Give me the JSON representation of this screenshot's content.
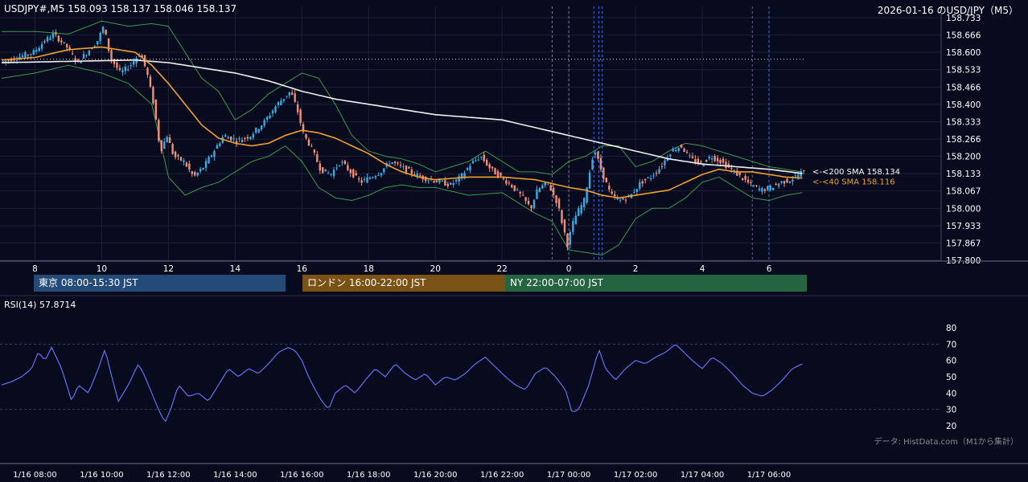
{
  "header": {
    "symbol_ohlc": "USDJPY#,M5 158.093 158.137 158.046 158.137",
    "right_title": "2026-01-16 のUSD/JPY（M5）"
  },
  "sessions": [
    {
      "label": "東京 08:00-15:30 JST",
      "color": "#244a78"
    },
    {
      "label": "ロンドン 16:00-22:00 JST",
      "color": "#7a5214"
    },
    {
      "label": "NY 22:00-07:00 JST",
      "color": "#256440"
    }
  ],
  "rsi_label": "RSI(14) 57.8714",
  "attribution": "データ: HistData.com（M1から集計）",
  "colors": {
    "background": "#080a1e",
    "bull": "#3fa9e0",
    "bear": "#f0907a",
    "sma40": "#f0a030",
    "sma200": "#f0f0f0",
    "bollinger": "#3c9a4a",
    "rsi": "#6670f0",
    "grid": "#1c2036"
  },
  "chart_data": [
    {
      "type": "candlestick",
      "timeframe": "M5",
      "ylim": [
        157.8,
        158.733
      ],
      "y_ticks": [
        "158.733",
        "158.666",
        "158.600",
        "158.533",
        "158.466",
        "158.400",
        "158.333",
        "158.266",
        "158.200",
        "158.133",
        "158.067",
        "158.000",
        "157.933",
        "157.867",
        "157.800"
      ],
      "x_ticks": [
        "8",
        "10",
        "12",
        "14",
        "16",
        "18",
        "20",
        "22",
        "0",
        "2",
        "4",
        "6"
      ],
      "x_tick_hours": [
        8,
        10,
        12,
        14,
        16,
        18,
        20,
        22,
        24,
        26,
        28,
        30
      ],
      "x_range_hours": [
        7.0,
        31.06
      ],
      "bottom_tick_labels": [
        "1/16 08:00",
        "1/16 10:00",
        "1/16 12:00",
        "1/16 14:00",
        "1/16 16:00",
        "1/16 18:00",
        "1/16 20:00",
        "1/16 22:00",
        "1/17 00:00",
        "1/17 02:00",
        "1/17 04:00",
        "1/17 06:00"
      ],
      "indicator_labels": {
        "sma200": "<-<200 SMA 158.134",
        "sma40": "<-<40 SMA 158.116"
      },
      "reference_line": 158.573,
      "event_lines_hours": [
        23.5,
        24.0,
        24.75,
        24.9,
        25.0,
        29.5,
        30.0
      ],
      "price_path": [
        [
          7.0,
          158.56
        ],
        [
          7.5,
          158.58
        ],
        [
          8.0,
          158.6
        ],
        [
          8.3,
          158.64
        ],
        [
          8.6,
          158.67
        ],
        [
          9.0,
          158.62
        ],
        [
          9.3,
          158.56
        ],
        [
          9.6,
          158.6
        ],
        [
          9.9,
          158.64
        ],
        [
          10.1,
          158.7
        ],
        [
          10.3,
          158.58
        ],
        [
          10.6,
          158.52
        ],
        [
          10.9,
          158.55
        ],
        [
          11.2,
          158.6
        ],
        [
          11.4,
          158.52
        ],
        [
          11.6,
          158.4
        ],
        [
          11.8,
          158.22
        ],
        [
          12.0,
          158.28
        ],
        [
          12.2,
          158.2
        ],
        [
          12.5,
          158.18
        ],
        [
          12.8,
          158.12
        ],
        [
          13.1,
          158.16
        ],
        [
          13.4,
          158.22
        ],
        [
          13.7,
          158.28
        ],
        [
          14.1,
          158.26
        ],
        [
          14.5,
          158.28
        ],
        [
          14.9,
          158.33
        ],
        [
          15.3,
          158.4
        ],
        [
          15.7,
          158.45
        ],
        [
          15.9,
          158.38
        ],
        [
          16.1,
          158.28
        ],
        [
          16.3,
          158.24
        ],
        [
          16.6,
          158.15
        ],
        [
          16.9,
          158.13
        ],
        [
          17.2,
          158.18
        ],
        [
          17.5,
          158.14
        ],
        [
          17.8,
          158.1
        ],
        [
          18.1,
          158.12
        ],
        [
          18.4,
          158.14
        ],
        [
          18.7,
          158.18
        ],
        [
          19.0,
          158.16
        ],
        [
          19.3,
          158.14
        ],
        [
          19.6,
          158.12
        ],
        [
          19.9,
          158.11
        ],
        [
          20.2,
          158.1
        ],
        [
          20.5,
          158.09
        ],
        [
          20.8,
          158.12
        ],
        [
          21.1,
          158.17
        ],
        [
          21.4,
          158.2
        ],
        [
          21.7,
          158.15
        ],
        [
          22.0,
          158.12
        ],
        [
          22.3,
          158.09
        ],
        [
          22.6,
          158.05
        ],
        [
          22.9,
          158.0
        ],
        [
          23.1,
          158.07
        ],
        [
          23.4,
          158.1
        ],
        [
          23.7,
          158.02
        ],
        [
          24.0,
          157.86
        ],
        [
          24.2,
          157.96
        ],
        [
          24.5,
          158.03
        ],
        [
          24.8,
          158.23
        ],
        [
          25.0,
          158.15
        ],
        [
          25.3,
          158.05
        ],
        [
          25.6,
          158.03
        ],
        [
          25.9,
          158.05
        ],
        [
          26.2,
          158.1
        ],
        [
          26.5,
          158.12
        ],
        [
          26.8,
          158.16
        ],
        [
          27.1,
          158.22
        ],
        [
          27.4,
          158.24
        ],
        [
          27.7,
          158.19
        ],
        [
          28.0,
          158.17
        ],
        [
          28.3,
          158.2
        ],
        [
          28.6,
          158.18
        ],
        [
          28.9,
          158.15
        ],
        [
          29.2,
          158.12
        ],
        [
          29.5,
          158.09
        ],
        [
          29.8,
          158.07
        ],
        [
          30.1,
          158.08
        ],
        [
          30.4,
          158.1
        ],
        [
          30.7,
          158.11
        ],
        [
          31.0,
          158.137
        ]
      ],
      "sma40_path": [
        [
          7.0,
          158.57
        ],
        [
          8.0,
          158.58
        ],
        [
          9.0,
          158.61
        ],
        [
          10.0,
          158.62
        ],
        [
          11.0,
          158.6
        ],
        [
          11.5,
          158.55
        ],
        [
          12.0,
          158.48
        ],
        [
          12.5,
          158.4
        ],
        [
          13.0,
          158.32
        ],
        [
          13.5,
          158.27
        ],
        [
          14.0,
          158.25
        ],
        [
          14.5,
          158.24
        ],
        [
          15.0,
          158.25
        ],
        [
          15.5,
          158.28
        ],
        [
          16.0,
          158.3
        ],
        [
          16.5,
          158.29
        ],
        [
          17.0,
          158.27
        ],
        [
          17.5,
          158.24
        ],
        [
          18.0,
          158.21
        ],
        [
          18.5,
          158.17
        ],
        [
          19.0,
          158.14
        ],
        [
          19.5,
          158.12
        ],
        [
          20.0,
          158.11
        ],
        [
          21.0,
          158.12
        ],
        [
          22.0,
          158.12
        ],
        [
          23.0,
          158.11
        ],
        [
          24.0,
          158.08
        ],
        [
          24.5,
          158.07
        ],
        [
          25.0,
          158.05
        ],
        [
          25.5,
          158.04
        ],
        [
          26.0,
          158.05
        ],
        [
          26.5,
          158.06
        ],
        [
          27.0,
          158.07
        ],
        [
          27.5,
          158.1
        ],
        [
          28.0,
          158.13
        ],
        [
          28.5,
          158.15
        ],
        [
          29.0,
          158.14
        ],
        [
          29.5,
          158.14
        ],
        [
          30.0,
          158.13
        ],
        [
          30.5,
          158.12
        ],
        [
          31.0,
          158.116
        ]
      ],
      "sma200_path": [
        [
          7.0,
          158.56
        ],
        [
          9.0,
          158.565
        ],
        [
          11.0,
          158.57
        ],
        [
          12.0,
          158.56
        ],
        [
          13.0,
          158.54
        ],
        [
          14.0,
          158.52
        ],
        [
          15.0,
          158.49
        ],
        [
          16.0,
          158.45
        ],
        [
          17.0,
          158.42
        ],
        [
          18.0,
          158.4
        ],
        [
          19.0,
          158.38
        ],
        [
          20.0,
          158.36
        ],
        [
          21.0,
          158.35
        ],
        [
          22.0,
          158.34
        ],
        [
          23.0,
          158.31
        ],
        [
          24.0,
          158.28
        ],
        [
          25.0,
          158.25
        ],
        [
          26.0,
          158.22
        ],
        [
          27.0,
          158.19
        ],
        [
          28.0,
          158.17
        ],
        [
          29.0,
          158.16
        ],
        [
          30.0,
          158.15
        ],
        [
          31.0,
          158.134
        ]
      ],
      "band_upper": [
        [
          7.0,
          158.68
        ],
        [
          8.0,
          158.68
        ],
        [
          9.0,
          158.67
        ],
        [
          10.0,
          158.72
        ],
        [
          10.8,
          158.7
        ],
        [
          11.5,
          158.71
        ],
        [
          12.0,
          158.7
        ],
        [
          12.5,
          158.6
        ],
        [
          13.0,
          158.5
        ],
        [
          13.5,
          158.45
        ],
        [
          14.0,
          158.34
        ],
        [
          14.5,
          158.38
        ],
        [
          15.0,
          158.44
        ],
        [
          15.5,
          158.48
        ],
        [
          16.0,
          158.52
        ],
        [
          16.5,
          158.5
        ],
        [
          17.0,
          158.4
        ],
        [
          17.5,
          158.28
        ],
        [
          18.0,
          158.22
        ],
        [
          18.5,
          158.2
        ],
        [
          19.0,
          158.19
        ],
        [
          19.5,
          158.17
        ],
        [
          20.0,
          158.14
        ],
        [
          21.0,
          158.18
        ],
        [
          21.5,
          158.22
        ],
        [
          22.0,
          158.18
        ],
        [
          22.5,
          158.14
        ],
        [
          23.0,
          158.14
        ],
        [
          23.5,
          158.13
        ],
        [
          24.0,
          158.18
        ],
        [
          24.5,
          158.2
        ],
        [
          25.0,
          158.24
        ],
        [
          25.5,
          158.24
        ],
        [
          26.0,
          158.16
        ],
        [
          26.5,
          158.18
        ],
        [
          27.0,
          158.22
        ],
        [
          27.5,
          158.25
        ],
        [
          28.0,
          158.24
        ],
        [
          28.5,
          158.22
        ],
        [
          29.0,
          158.2
        ],
        [
          29.5,
          158.18
        ],
        [
          30.0,
          158.16
        ],
        [
          30.5,
          158.15
        ],
        [
          31.0,
          158.14
        ]
      ],
      "band_lower": [
        [
          7.0,
          158.5
        ],
        [
          8.0,
          158.52
        ],
        [
          9.0,
          158.55
        ],
        [
          10.0,
          158.52
        ],
        [
          10.8,
          158.48
        ],
        [
          11.5,
          158.4
        ],
        [
          12.0,
          158.12
        ],
        [
          12.5,
          158.05
        ],
        [
          13.0,
          158.08
        ],
        [
          13.5,
          158.1
        ],
        [
          14.0,
          158.14
        ],
        [
          14.5,
          158.18
        ],
        [
          15.0,
          158.2
        ],
        [
          15.5,
          158.24
        ],
        [
          16.0,
          158.18
        ],
        [
          16.5,
          158.08
        ],
        [
          17.0,
          158.04
        ],
        [
          17.5,
          158.03
        ],
        [
          18.0,
          158.05
        ],
        [
          18.5,
          158.08
        ],
        [
          19.0,
          158.09
        ],
        [
          19.5,
          158.08
        ],
        [
          20.0,
          158.08
        ],
        [
          21.0,
          158.05
        ],
        [
          22.0,
          158.06
        ],
        [
          22.5,
          158.02
        ],
        [
          23.0,
          157.98
        ],
        [
          23.5,
          157.95
        ],
        [
          24.0,
          157.84
        ],
        [
          24.5,
          157.83
        ],
        [
          25.0,
          157.82
        ],
        [
          25.5,
          157.86
        ],
        [
          26.0,
          157.96
        ],
        [
          26.5,
          158.0
        ],
        [
          27.0,
          158.0
        ],
        [
          27.5,
          158.04
        ],
        [
          28.0,
          158.1
        ],
        [
          28.5,
          158.12
        ],
        [
          29.0,
          158.08
        ],
        [
          29.5,
          158.04
        ],
        [
          30.0,
          158.03
        ],
        [
          30.5,
          158.05
        ],
        [
          31.0,
          158.06
        ]
      ]
    },
    {
      "type": "line",
      "name": "RSI(14)",
      "ylim": [
        15,
        85
      ],
      "y_ticks": [
        80,
        70,
        60,
        50,
        40,
        30,
        20
      ],
      "dashed_levels": [
        70,
        30
      ],
      "values": [
        [
          7.0,
          45
        ],
        [
          7.3,
          47
        ],
        [
          7.6,
          50
        ],
        [
          7.9,
          55
        ],
        [
          8.1,
          65
        ],
        [
          8.3,
          60
        ],
        [
          8.5,
          68
        ],
        [
          8.8,
          55
        ],
        [
          9.1,
          35
        ],
        [
          9.3,
          45
        ],
        [
          9.6,
          40
        ],
        [
          9.9,
          55
        ],
        [
          10.1,
          67
        ],
        [
          10.3,
          50
        ],
        [
          10.5,
          35
        ],
        [
          10.8,
          45
        ],
        [
          11.1,
          58
        ],
        [
          11.3,
          50
        ],
        [
          11.5,
          40
        ],
        [
          11.7,
          30
        ],
        [
          11.9,
          22
        ],
        [
          12.1,
          32
        ],
        [
          12.3,
          45
        ],
        [
          12.6,
          38
        ],
        [
          12.9,
          40
        ],
        [
          13.2,
          35
        ],
        [
          13.5,
          45
        ],
        [
          13.8,
          55
        ],
        [
          14.1,
          50
        ],
        [
          14.4,
          55
        ],
        [
          14.7,
          52
        ],
        [
          15.0,
          58
        ],
        [
          15.3,
          65
        ],
        [
          15.6,
          68
        ],
        [
          15.8,
          66
        ],
        [
          16.0,
          60
        ],
        [
          16.2,
          50
        ],
        [
          16.4,
          42
        ],
        [
          16.6,
          35
        ],
        [
          16.8,
          30
        ],
        [
          17.0,
          40
        ],
        [
          17.3,
          45
        ],
        [
          17.6,
          40
        ],
        [
          17.9,
          48
        ],
        [
          18.2,
          55
        ],
        [
          18.5,
          50
        ],
        [
          18.8,
          58
        ],
        [
          19.1,
          52
        ],
        [
          19.4,
          48
        ],
        [
          19.7,
          52
        ],
        [
          20.0,
          45
        ],
        [
          20.3,
          50
        ],
        [
          20.6,
          48
        ],
        [
          20.9,
          52
        ],
        [
          21.2,
          58
        ],
        [
          21.5,
          62
        ],
        [
          21.8,
          56
        ],
        [
          22.1,
          50
        ],
        [
          22.4,
          45
        ],
        [
          22.7,
          42
        ],
        [
          23.0,
          52
        ],
        [
          23.3,
          56
        ],
        [
          23.6,
          50
        ],
        [
          23.9,
          42
        ],
        [
          24.1,
          28
        ],
        [
          24.3,
          30
        ],
        [
          24.6,
          45
        ],
        [
          24.9,
          67
        ],
        [
          25.1,
          55
        ],
        [
          25.4,
          48
        ],
        [
          25.7,
          55
        ],
        [
          26.0,
          60
        ],
        [
          26.3,
          58
        ],
        [
          26.6,
          62
        ],
        [
          26.9,
          65
        ],
        [
          27.2,
          70
        ],
        [
          27.4,
          66
        ],
        [
          27.7,
          60
        ],
        [
          28.0,
          55
        ],
        [
          28.3,
          62
        ],
        [
          28.6,
          58
        ],
        [
          28.9,
          52
        ],
        [
          29.2,
          45
        ],
        [
          29.5,
          40
        ],
        [
          29.8,
          38
        ],
        [
          30.1,
          42
        ],
        [
          30.4,
          48
        ],
        [
          30.7,
          55
        ],
        [
          31.0,
          57.87
        ]
      ]
    }
  ]
}
